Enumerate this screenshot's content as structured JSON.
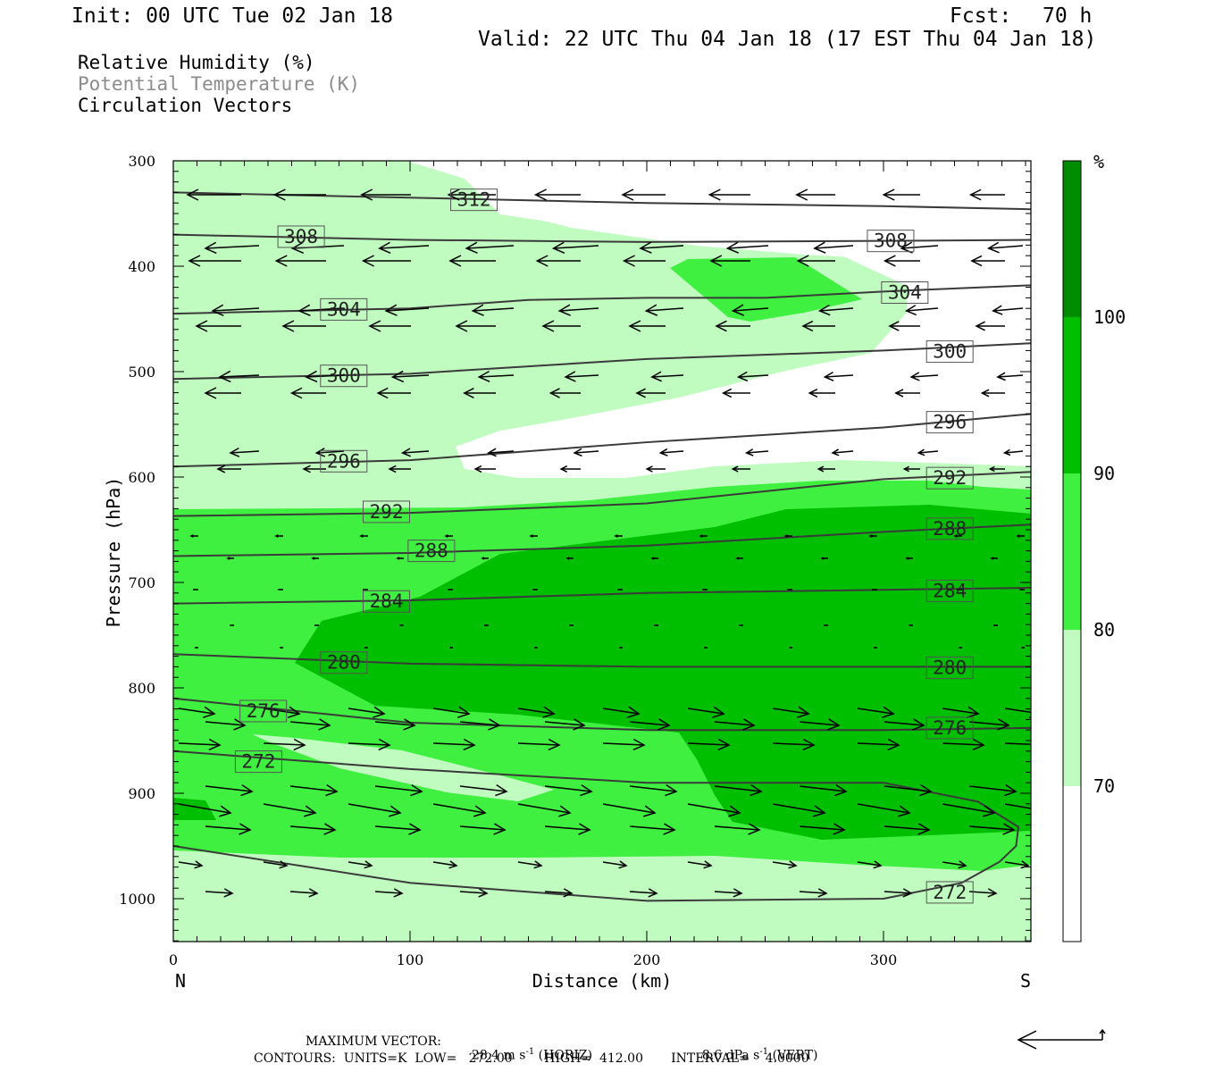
{
  "header": {
    "init": "Init: 00 UTC Tue 02 Jan 18",
    "fcst_label": "Fcst:",
    "fcst_value": "70 h",
    "valid": "Valid: 22 UTC Thu 04 Jan 18 (17 EST Thu 04 Jan 18)"
  },
  "legend": {
    "line1": "Relative Humidity (%)",
    "line2": "Potential Temperature (K)",
    "line3": "Circulation Vectors"
  },
  "colors": {
    "rh_70": "#c0fcc0",
    "rh_80": "#40f040",
    "rh_90": "#00be00",
    "rh_100": "#008c00",
    "theta_line": "#3a3a3a",
    "legend2_text": "#8c8c8c"
  },
  "chart_data": {
    "type": "contour",
    "xlabel": "Distance (km)",
    "ylabel": "Pressure (hPa)",
    "x_ticks": [
      "0",
      "100",
      "200",
      "300"
    ],
    "x_end_labels": {
      "left": "N",
      "right": "S"
    },
    "y_ticks": [
      "300",
      "400",
      "500",
      "600",
      "700",
      "800",
      "900",
      "1000"
    ],
    "xlim": [
      0,
      363
    ],
    "ylim": [
      300,
      1040
    ],
    "colorbar": {
      "unit": "%",
      "ticks": [
        "70",
        "80",
        "90",
        "100"
      ]
    },
    "theta_lines": [
      {
        "label": "312",
        "x": [
          0,
          100,
          200,
          300,
          363
        ],
        "p": [
          330,
          335,
          340,
          343,
          346
        ]
      },
      {
        "label": "308",
        "x": [
          0,
          100,
          200,
          300,
          363
        ],
        "p": [
          370,
          375,
          377,
          376,
          375
        ]
      },
      {
        "label": "304",
        "x": [
          0,
          100,
          150,
          200,
          250,
          300,
          363
        ],
        "p": [
          445,
          440,
          432,
          430,
          430,
          424,
          418
        ]
      },
      {
        "label": "300",
        "x": [
          0,
          100,
          200,
          300,
          363
        ],
        "p": [
          507,
          502,
          488,
          480,
          473
        ]
      },
      {
        "label": "296",
        "x": [
          0,
          100,
          200,
          300,
          363
        ],
        "p": [
          590,
          584,
          567,
          553,
          540
        ]
      },
      {
        "label": "292",
        "x": [
          0,
          100,
          200,
          300,
          363
        ],
        "p": [
          637,
          634,
          625,
          602,
          595
        ]
      },
      {
        "label": "288",
        "x": [
          0,
          100,
          200,
          300,
          363
        ],
        "p": [
          675,
          672,
          665,
          652,
          645
        ]
      },
      {
        "label": "284",
        "x": [
          0,
          100,
          200,
          300,
          363
        ],
        "p": [
          720,
          717,
          710,
          707,
          705
        ]
      },
      {
        "label": "280",
        "x": [
          0,
          100,
          200,
          300,
          363
        ],
        "p": [
          768,
          777,
          780,
          780,
          780
        ]
      },
      {
        "label": "276",
        "x": [
          0,
          100,
          200,
          300,
          363
        ],
        "p": [
          810,
          833,
          840,
          840,
          838
        ]
      },
      {
        "label": "272",
        "x": [
          0,
          100,
          200,
          300,
          340,
          357,
          356,
          349,
          333,
          300,
          200,
          100,
          0
        ],
        "p": [
          860,
          877,
          890,
          890,
          908,
          932,
          950,
          965,
          985,
          1000,
          1002,
          985,
          950
        ]
      }
    ],
    "theta_label_positions": [
      {
        "label": "312",
        "x": 127,
        "p": 337
      },
      {
        "label": "308",
        "x": 54,
        "p": 372
      },
      {
        "label": "308",
        "x": 303,
        "p": 376
      },
      {
        "label": "304",
        "x": 72,
        "p": 441
      },
      {
        "label": "304",
        "x": 309,
        "p": 425
      },
      {
        "label": "300",
        "x": 72,
        "p": 504
      },
      {
        "label": "300",
        "x": 328,
        "p": 481
      },
      {
        "label": "296",
        "x": 72,
        "p": 585
      },
      {
        "label": "296",
        "x": 328,
        "p": 548
      },
      {
        "label": "292",
        "x": 90,
        "p": 633
      },
      {
        "label": "292",
        "x": 328,
        "p": 601
      },
      {
        "label": "288",
        "x": 109,
        "p": 670
      },
      {
        "label": "288",
        "x": 328,
        "p": 649
      },
      {
        "label": "284",
        "x": 90,
        "p": 718
      },
      {
        "label": "284",
        "x": 328,
        "p": 708
      },
      {
        "label": "280",
        "x": 72,
        "p": 776
      },
      {
        "label": "280",
        "x": 328,
        "p": 781
      },
      {
        "label": "276",
        "x": 38,
        "p": 822
      },
      {
        "label": "276",
        "x": 328,
        "p": 838
      },
      {
        "label": "272",
        "x": 36,
        "p": 870
      },
      {
        "label": "272",
        "x": 328,
        "p": 994
      }
    ]
  },
  "footer": {
    "max_vector_label": "MAXIMUM VECTOR:",
    "horiz_value": "28.4 m s",
    "horiz_unit": "(HORIZ)",
    "vert_value": "8.6 dPa s",
    "vert_unit": "(VERT)",
    "exponent": "-1",
    "contours_line": "CONTOURS:  UNITS=K  LOW=   272.00        HIGH=  412.00       INTERVAL=    4.0000"
  }
}
